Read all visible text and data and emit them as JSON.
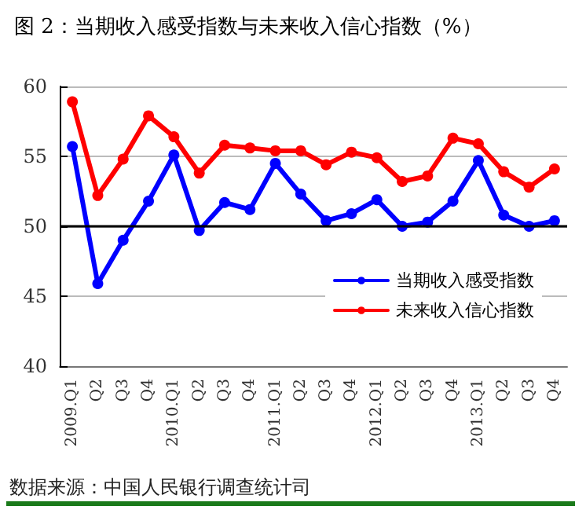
{
  "chart_data": {
    "type": "line",
    "title": "图 2：当期收入感受指数与未来收入信心指数（%）",
    "categories": [
      "2009.Q1",
      "Q2",
      "Q3",
      "Q4",
      "2010.Q1",
      "Q2",
      "Q3",
      "Q4",
      "2011.Q1",
      "Q2",
      "Q3",
      "Q4",
      "2012.Q1",
      "Q2",
      "Q3",
      "Q4",
      "2013.Q1",
      "Q2",
      "Q3",
      "Q4"
    ],
    "series": [
      {
        "name": "当期收入感受指数",
        "color": "#0000ff",
        "values": [
          55.7,
          45.9,
          49.0,
          51.8,
          55.1,
          49.7,
          51.7,
          51.2,
          54.5,
          52.3,
          50.4,
          50.9,
          51.9,
          50.0,
          50.3,
          51.8,
          54.7,
          50.8,
          50.0,
          50.4
        ]
      },
      {
        "name": "未来收入信心指数",
        "color": "#ff0000",
        "values": [
          58.9,
          52.2,
          54.8,
          57.9,
          56.4,
          53.8,
          55.8,
          55.6,
          55.4,
          55.4,
          54.4,
          55.3,
          54.9,
          53.2,
          53.6,
          56.3,
          55.9,
          53.9,
          52.8,
          54.1
        ]
      }
    ],
    "ref_lines": [
      {
        "axis": "y",
        "value": 50,
        "color": "#000000"
      }
    ],
    "ylim": [
      40,
      60
    ],
    "yticks": [
      40,
      45,
      50,
      55,
      60
    ],
    "grid": "y",
    "legend": "bottom right",
    "marker": "circle",
    "line_style": "solid",
    "annotations": [
      "数据来源：中国人民银行调查统计司"
    ]
  }
}
